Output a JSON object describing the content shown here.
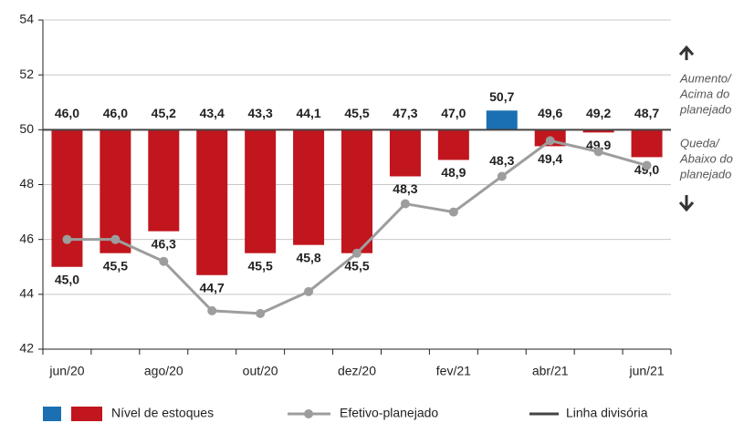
{
  "chart_data": {
    "type": "bar",
    "categories": [
      "jun/20",
      null,
      "ago/20",
      null,
      "out/20",
      null,
      "dez/20",
      null,
      "fev/21",
      null,
      "abr/21",
      null,
      "jun/21"
    ],
    "series": [
      {
        "name": "Nível de estoques",
        "color": "#c1161e",
        "above_color": "#1a70b2",
        "values": [
          45.0,
          45.5,
          46.3,
          44.7,
          45.5,
          45.8,
          45.5,
          48.3,
          48.9,
          50.7,
          49.4,
          49.9,
          49.0
        ],
        "value_labels": [
          "45,0",
          "45,5",
          "46,3",
          "44,7",
          "45,5",
          "45,8",
          "45,5",
          "48,3",
          "48,9",
          "50,7",
          "49,4",
          "49,9",
          "49,0"
        ]
      },
      {
        "name": "Efetivo-planejado",
        "color": "#9d9d9d",
        "type": "line",
        "values": [
          46.0,
          46.0,
          45.2,
          43.4,
          43.3,
          44.1,
          45.5,
          47.3,
          47.0,
          48.3,
          49.6,
          49.2,
          48.7
        ],
        "value_labels": [
          "46,0",
          "46,0",
          "45,2",
          "43,4",
          "43,3",
          "44,1",
          "45,5",
          "47,3",
          "47,0",
          "48,3",
          "49,6",
          "49,2",
          "48,7"
        ]
      }
    ],
    "divider": {
      "name": "Linha divisória",
      "value": 50,
      "color": "#444444"
    },
    "ylim": [
      42,
      54
    ],
    "yticks": [
      42,
      44,
      46,
      48,
      50,
      52,
      54
    ],
    "grid": true,
    "annotations": {
      "above": [
        "Aumento/",
        "Acima do",
        "planejado"
      ],
      "below": [
        "Queda/",
        "Abaixo do",
        "planejado"
      ]
    }
  }
}
